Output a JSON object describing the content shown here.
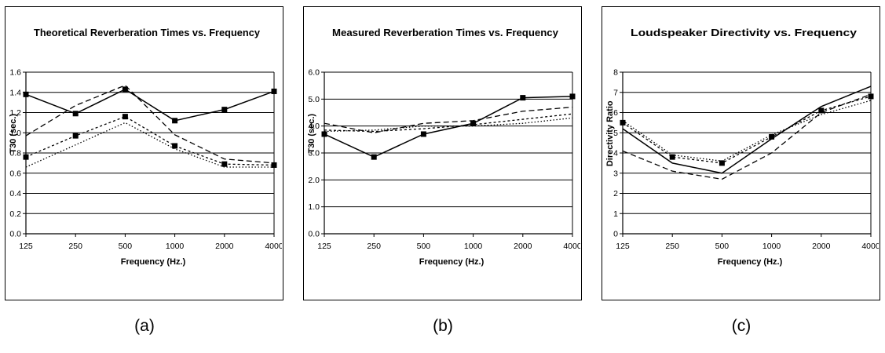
{
  "chart_data": [
    {
      "type": "line",
      "title": "Theoretical Reverberation Times vs. Frequency",
      "xlabel": "Frequency (Hz.)",
      "ylabel": "T30 (sec.)",
      "categories": [
        "125",
        "250",
        "500",
        "1000",
        "2000",
        "4000"
      ],
      "ylim": [
        0,
        1.6
      ],
      "yticks": [
        "0.0",
        "0.2",
        "0.4",
        "0.6",
        "0.8",
        "1.0",
        "1.2",
        "1.4",
        "1.6"
      ],
      "ytick_values": [
        0,
        0.2,
        0.4,
        0.6,
        0.8,
        1.0,
        1.2,
        1.4,
        1.6
      ],
      "grid": true,
      "series": [
        {
          "values": [
            1.38,
            1.19,
            1.43,
            1.12,
            1.23,
            1.41
          ],
          "dash": "",
          "marker": "square"
        },
        {
          "values": [
            0.97,
            1.27,
            1.47,
            0.98,
            0.74,
            0.7
          ],
          "dash": "7,4",
          "marker": "none"
        },
        {
          "values": [
            0.76,
            0.97,
            1.16,
            0.87,
            0.69,
            0.68
          ],
          "dash": "3,3",
          "marker": "square"
        },
        {
          "values": [
            0.66,
            0.88,
            1.1,
            0.84,
            0.66,
            0.66
          ],
          "dash": "1.5,2.5",
          "marker": "none"
        }
      ]
    },
    {
      "type": "line",
      "title": "Measured Reverberation Times vs. Frequency",
      "xlabel": "Frequency (Hz.)",
      "ylabel": "T30 (sec.)",
      "categories": [
        "125",
        "250",
        "500",
        "1000",
        "2000",
        "4000"
      ],
      "ylim": [
        0,
        6
      ],
      "yticks": [
        "0.0",
        "1.0",
        "2.0",
        "3.0",
        "4.0",
        "5.0",
        "6.0"
      ],
      "ytick_values": [
        0,
        1,
        2,
        3,
        4,
        5,
        6
      ],
      "grid": true,
      "series": [
        {
          "values": [
            3.7,
            2.85,
            3.7,
            4.1,
            5.05,
            5.1
          ],
          "dash": "",
          "marker": "square"
        },
        {
          "values": [
            4.1,
            3.75,
            4.1,
            4.2,
            4.55,
            4.7
          ],
          "dash": "7,4",
          "marker": "none"
        },
        {
          "values": [
            3.85,
            3.8,
            3.9,
            4.05,
            4.25,
            4.45
          ],
          "dash": "3,3",
          "marker": "none"
        },
        {
          "values": [
            3.8,
            3.85,
            4.0,
            4.0,
            4.1,
            4.3
          ],
          "dash": "1.5,2.5",
          "marker": "none"
        }
      ]
    },
    {
      "type": "line",
      "title": "Loudspeaker Directivity vs. Frequency",
      "xlabel": "Frequency (Hz.)",
      "ylabel": "Directivity Ratio",
      "categories": [
        "125",
        "250",
        "500",
        "1000",
        "2000",
        "4000"
      ],
      "ylim": [
        0,
        8
      ],
      "yticks": [
        "0",
        "1",
        "2",
        "3",
        "4",
        "5",
        "6",
        "7",
        "8"
      ],
      "ytick_values": [
        0,
        1,
        2,
        3,
        4,
        5,
        6,
        7,
        8
      ],
      "grid": true,
      "series": [
        {
          "values": [
            5.2,
            3.5,
            3.0,
            4.7,
            6.3,
            7.3
          ],
          "dash": "",
          "marker": "none"
        },
        {
          "values": [
            4.1,
            3.1,
            2.7,
            4.0,
            6.0,
            6.9
          ],
          "dash": "7,4",
          "marker": "none"
        },
        {
          "values": [
            5.5,
            3.8,
            3.5,
            4.8,
            6.1,
            6.8
          ],
          "dash": "3,3",
          "marker": "square"
        },
        {
          "values": [
            5.6,
            3.9,
            3.6,
            4.9,
            5.9,
            6.6
          ],
          "dash": "1.5,2.5",
          "marker": "none"
        }
      ]
    }
  ],
  "captions": [
    "(a)",
    "(b)",
    "(c)"
  ]
}
